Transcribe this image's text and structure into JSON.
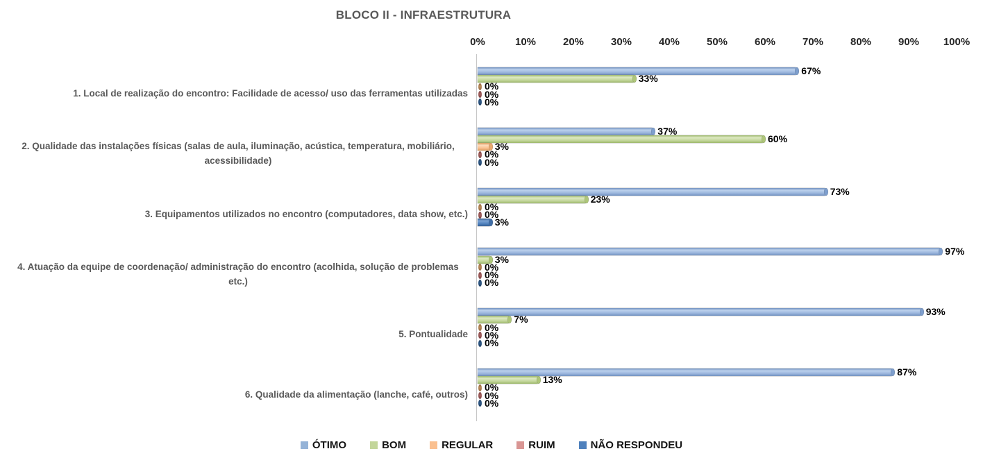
{
  "title": "BLOCO II - INFRAESTRUTURA",
  "chart_data": {
    "type": "bar",
    "orientation": "horizontal",
    "title": "BLOCO II - INFRAESTRUTURA",
    "xlim": [
      0,
      100
    ],
    "x_ticks": [
      "0%",
      "10%",
      "20%",
      "30%",
      "40%",
      "50%",
      "60%",
      "70%",
      "80%",
      "90%",
      "100%"
    ],
    "grid": false,
    "legend_position": "bottom",
    "value_label_format": "percent",
    "categories": [
      "1. Local de realização do encontro: Facilidade de acesso/ uso das ferramentas utilizadas",
      "2. Qualidade das instalações físicas (salas de aula, iluminação, acústica, temperatura, mobiliário, acessibilidade)",
      "3. Equipamentos utilizados no encontro (computadores, data show, etc.)",
      "4. Atuação da equipe de coordenação/ administração do encontro (acolhida, solução de problemas etc.)",
      "5. Pontualidade",
      "6. Qualidade da alimentação (lanche, café, outros)"
    ],
    "series": [
      {
        "id": "otimo",
        "name": "ÓTIMO",
        "color": "#95B3D7",
        "values": [
          67,
          37,
          73,
          97,
          93,
          87
        ]
      },
      {
        "id": "bom",
        "name": "BOM",
        "color": "#C3D69B",
        "values": [
          33,
          60,
          23,
          3,
          7,
          13
        ]
      },
      {
        "id": "regular",
        "name": "REGULAR",
        "color": "#FAC090",
        "values": [
          0,
          3,
          0,
          0,
          0,
          0
        ]
      },
      {
        "id": "ruim",
        "name": "RUIM",
        "color": "#D99694",
        "values": [
          0,
          0,
          0,
          0,
          0,
          0
        ]
      },
      {
        "id": "nao-respondeu",
        "name": "NÃO RESPONDEU",
        "color": "#4F81BD",
        "values": [
          0,
          0,
          3,
          0,
          0,
          0
        ]
      }
    ]
  },
  "colors": {
    "title_text": "#595959",
    "category_text": "#595959",
    "tick_text": "#262626",
    "data_label_text": "#000000",
    "axis_line": "#C6C6C6",
    "background": "#FFFFFF"
  }
}
